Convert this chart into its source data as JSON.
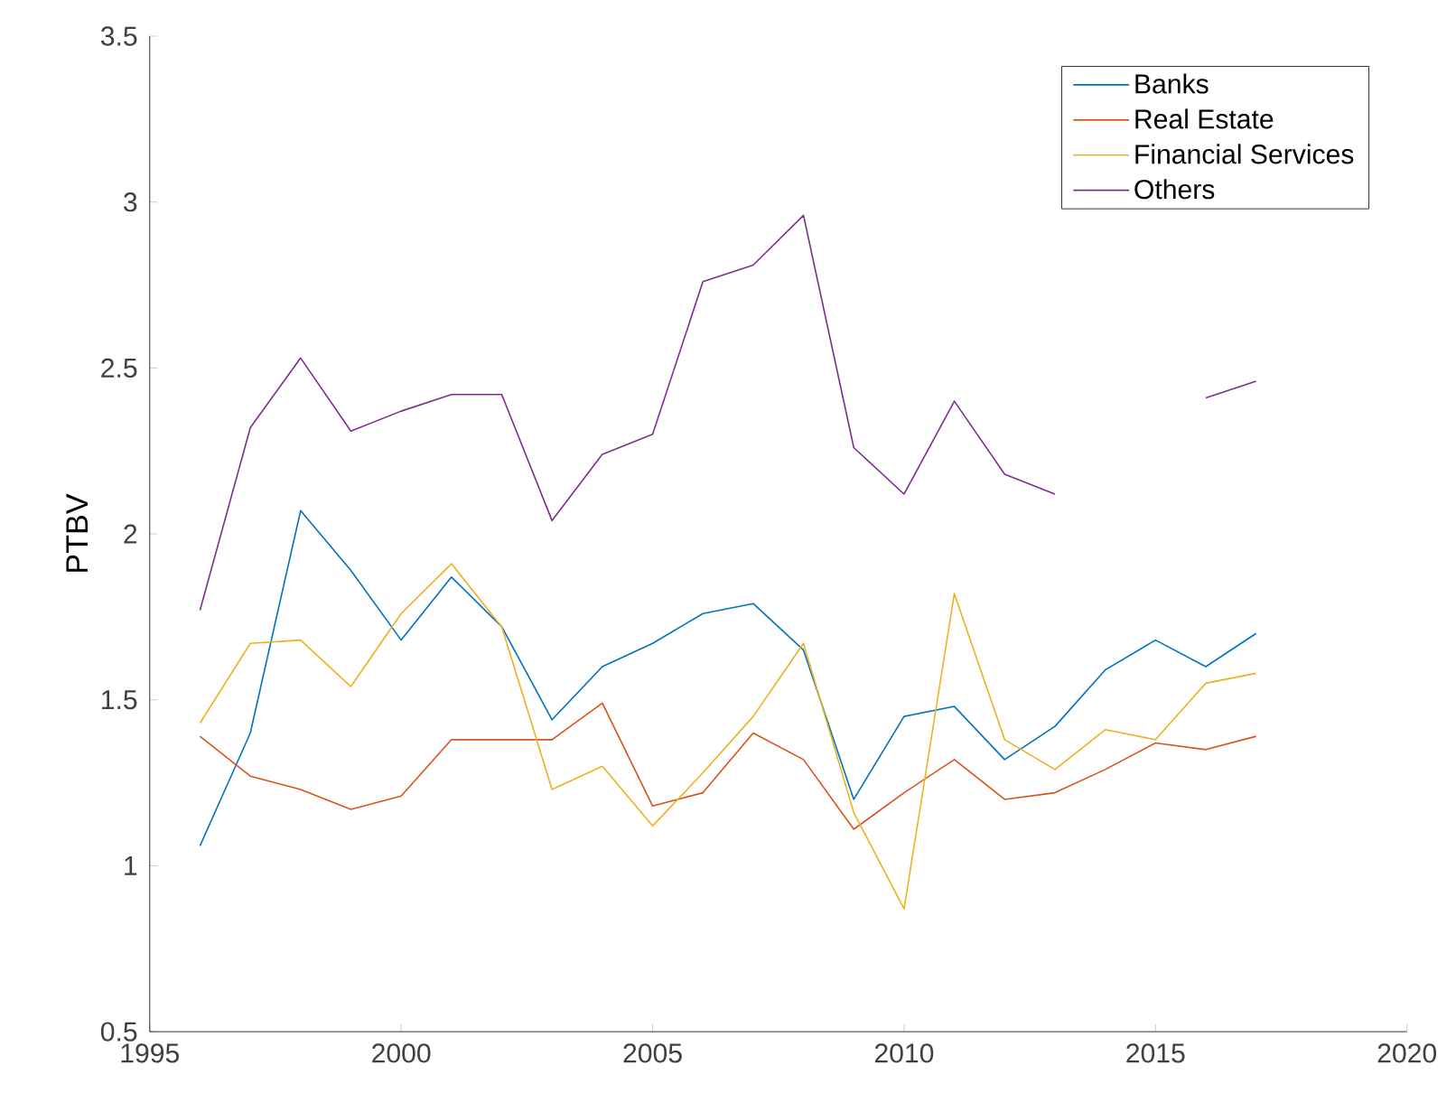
{
  "chart_data": {
    "type": "line",
    "ylabel": "PTBV",
    "x": [
      1996,
      1997,
      1998,
      1999,
      2000,
      2001,
      2002,
      2003,
      2004,
      2005,
      2006,
      2007,
      2008,
      2009,
      2010,
      2011,
      2012,
      2013,
      2014,
      2015,
      2016,
      2017
    ],
    "series": [
      {
        "name": "Banks",
        "color": "#0072bd",
        "values": [
          1.06,
          1.4,
          2.07,
          1.89,
          1.68,
          1.87,
          1.72,
          1.44,
          1.6,
          1.67,
          1.76,
          1.79,
          1.65,
          1.2,
          1.45,
          1.48,
          1.32,
          1.42,
          1.59,
          1.68,
          1.6,
          1.7
        ]
      },
      {
        "name": "Real Estate",
        "color": "#d95319",
        "values": [
          1.39,
          1.27,
          1.23,
          1.17,
          1.21,
          1.38,
          1.38,
          1.38,
          1.49,
          1.18,
          1.22,
          1.4,
          1.32,
          1.11,
          1.22,
          1.32,
          1.2,
          1.22,
          1.29,
          1.37,
          1.35,
          1.39
        ]
      },
      {
        "name": "Financial Services",
        "color": "#edb120",
        "values": [
          1.43,
          1.67,
          1.68,
          1.54,
          1.76,
          1.91,
          1.72,
          1.23,
          1.3,
          1.12,
          1.28,
          1.45,
          1.67,
          1.16,
          0.87,
          1.82,
          1.38,
          1.29,
          1.41,
          1.38,
          1.55,
          1.58
        ]
      },
      {
        "name": "Others",
        "color": "#7e2f8e",
        "values": [
          1.77,
          2.32,
          2.53,
          2.31,
          2.37,
          2.42,
          2.42,
          2.04,
          2.24,
          2.3,
          2.76,
          2.81,
          2.96,
          2.26,
          2.12,
          2.4,
          2.18,
          2.12,
          null,
          null,
          2.41,
          2.46
        ]
      }
    ],
    "xlim": [
      1995,
      2020
    ],
    "ylim": [
      0.5,
      3.5
    ],
    "xticks": [
      1995,
      2000,
      2005,
      2010,
      2015,
      2020
    ],
    "yticks": [
      0.5,
      1,
      1.5,
      2,
      2.5,
      3,
      3.5
    ],
    "legend": "top right",
    "grid": false,
    "marker": "none",
    "line_style": "solid"
  }
}
